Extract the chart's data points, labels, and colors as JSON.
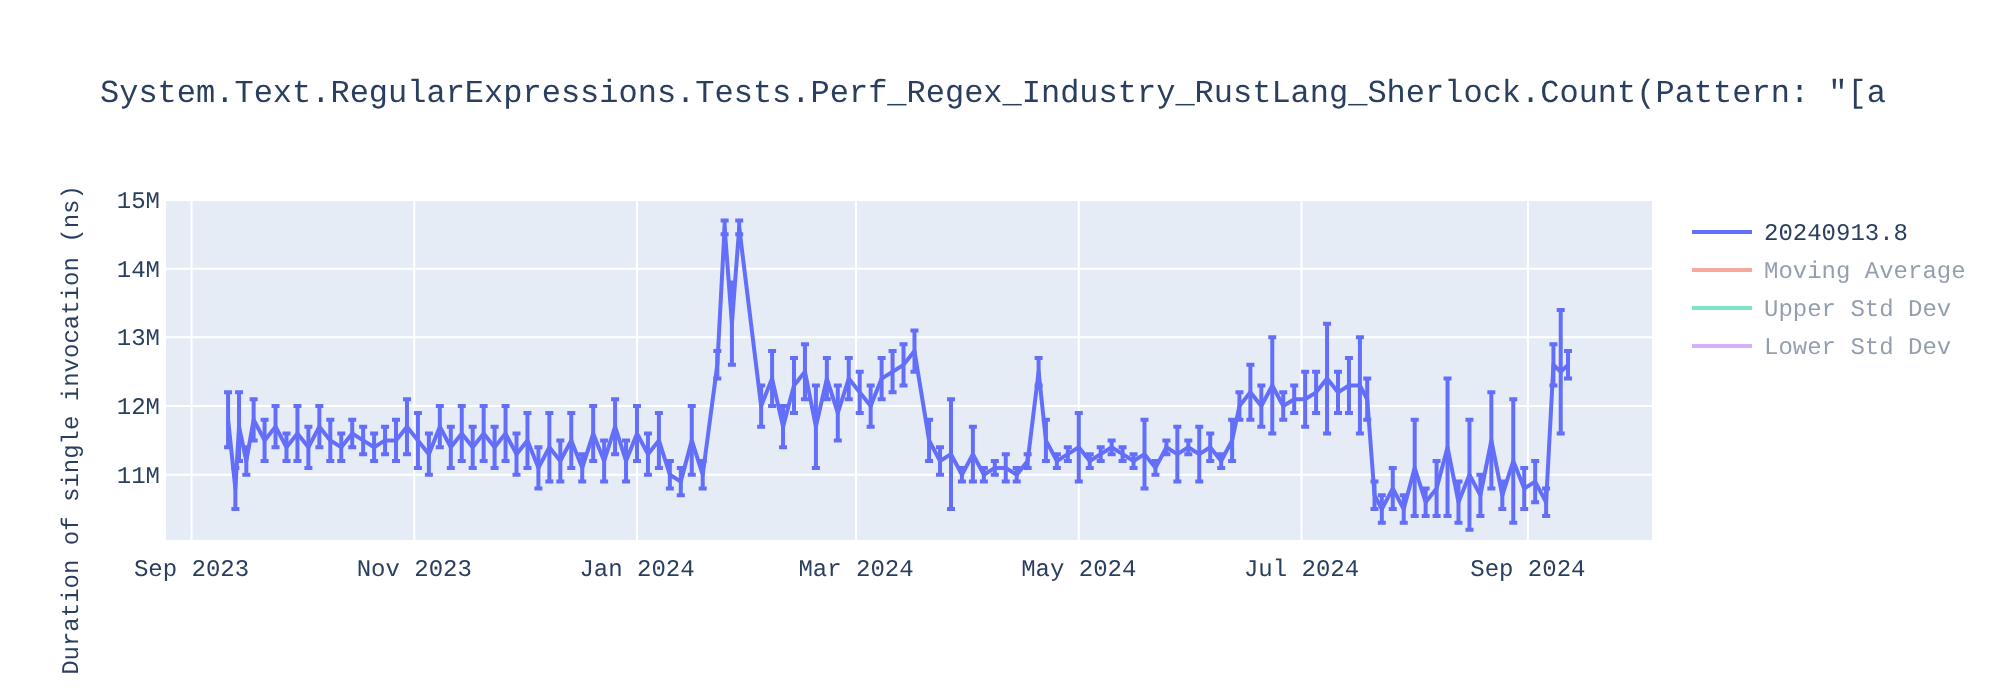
{
  "chart_data": {
    "type": "line",
    "title": "System.Text.RegularExpressions.Tests.Perf_Regex_Industry_RustLang_Sherlock.Count(Pattern: \"[a",
    "ylabel": "Duration of single invocation (ns)",
    "xlim": [
      "2023-08-25",
      "2024-10-05"
    ],
    "xticks": [
      {
        "value": "2023-09-01",
        "label": "Sep 2023"
      },
      {
        "value": "2023-11-01",
        "label": "Nov 2023"
      },
      {
        "value": "2024-01-01",
        "label": "Jan 2024"
      },
      {
        "value": "2024-03-01",
        "label": "Mar 2024"
      },
      {
        "value": "2024-05-01",
        "label": "May 2024"
      },
      {
        "value": "2024-07-01",
        "label": "Jul 2024"
      },
      {
        "value": "2024-09-01",
        "label": "Sep 2024"
      }
    ],
    "ylim": [
      10050000,
      15000000
    ],
    "yticks": [
      {
        "value": 11000000,
        "label": "11M"
      },
      {
        "value": 12000000,
        "label": "12M"
      },
      {
        "value": 13000000,
        "label": "13M"
      },
      {
        "value": 14000000,
        "label": "14M"
      },
      {
        "value": 15000000,
        "label": "15M"
      }
    ],
    "grid": true,
    "legend": "right",
    "series": [
      {
        "name": "20240913.8",
        "color": "#636efa",
        "x": [
          "2023-09-11",
          "2023-09-13",
          "2023-09-14",
          "2023-09-16",
          "2023-09-18",
          "2023-09-21",
          "2023-09-24",
          "2023-09-27",
          "2023-09-30",
          "2023-10-03",
          "2023-10-06",
          "2023-10-09",
          "2023-10-12",
          "2023-10-15",
          "2023-10-18",
          "2023-10-21",
          "2023-10-24",
          "2023-10-27",
          "2023-10-30",
          "2023-11-02",
          "2023-11-05",
          "2023-11-08",
          "2023-11-11",
          "2023-11-14",
          "2023-11-17",
          "2023-11-20",
          "2023-11-23",
          "2023-11-26",
          "2023-11-29",
          "2023-12-02",
          "2023-12-05",
          "2023-12-08",
          "2023-12-11",
          "2023-12-14",
          "2023-12-17",
          "2023-12-20",
          "2023-12-23",
          "2023-12-26",
          "2023-12-29",
          "2024-01-01",
          "2024-01-04",
          "2024-01-07",
          "2024-01-10",
          "2024-01-13",
          "2024-01-16",
          "2024-01-19",
          "2024-01-23",
          "2024-01-25",
          "2024-01-27",
          "2024-01-29",
          "2024-02-04",
          "2024-02-07",
          "2024-02-10",
          "2024-02-13",
          "2024-02-16",
          "2024-02-19",
          "2024-02-22",
          "2024-02-25",
          "2024-02-28",
          "2024-03-02",
          "2024-03-05",
          "2024-03-08",
          "2024-03-11",
          "2024-03-14",
          "2024-03-17",
          "2024-03-21",
          "2024-03-24",
          "2024-03-27",
          "2024-03-30",
          "2024-04-02",
          "2024-04-05",
          "2024-04-08",
          "2024-04-11",
          "2024-04-14",
          "2024-04-17",
          "2024-04-20",
          "2024-04-22",
          "2024-04-25",
          "2024-04-28",
          "2024-05-01",
          "2024-05-04",
          "2024-05-07",
          "2024-05-10",
          "2024-05-13",
          "2024-05-16",
          "2024-05-19",
          "2024-05-22",
          "2024-05-25",
          "2024-05-28",
          "2024-05-31",
          "2024-06-03",
          "2024-06-06",
          "2024-06-09",
          "2024-06-12",
          "2024-06-14",
          "2024-06-17",
          "2024-06-20",
          "2024-06-23",
          "2024-06-26",
          "2024-06-29",
          "2024-07-02",
          "2024-07-05",
          "2024-07-08",
          "2024-07-11",
          "2024-07-14",
          "2024-07-17",
          "2024-07-19",
          "2024-07-21",
          "2024-07-23",
          "2024-07-26",
          "2024-07-29",
          "2024-08-01",
          "2024-08-04",
          "2024-08-07",
          "2024-08-10",
          "2024-08-13",
          "2024-08-16",
          "2024-08-19",
          "2024-08-22",
          "2024-08-25",
          "2024-08-28",
          "2024-08-31",
          "2024-09-03",
          "2024-09-06",
          "2024-09-08",
          "2024-09-10",
          "2024-09-12"
        ],
        "values": [
          11800000,
          10800000,
          11700000,
          11200000,
          11800000,
          11500000,
          11700000,
          11400000,
          11600000,
          11400000,
          11700000,
          11500000,
          11400000,
          11600000,
          11500000,
          11400000,
          11500000,
          11500000,
          11700000,
          11500000,
          11300000,
          11700000,
          11400000,
          11600000,
          11400000,
          11600000,
          11400000,
          11600000,
          11300000,
          11500000,
          11100000,
          11400000,
          11200000,
          11500000,
          11100000,
          11600000,
          11200000,
          11700000,
          11200000,
          11600000,
          11300000,
          11500000,
          11000000,
          10900000,
          11500000,
          11000000,
          12600000,
          14600000,
          13200000,
          14600000,
          12000000,
          12400000,
          11700000,
          12300000,
          12500000,
          11700000,
          12400000,
          11900000,
          12400000,
          12200000,
          12000000,
          12400000,
          12500000,
          12600000,
          12800000,
          11500000,
          11200000,
          11300000,
          11000000,
          11300000,
          11000000,
          11100000,
          11100000,
          11000000,
          11200000,
          12500000,
          11500000,
          11200000,
          11300000,
          11400000,
          11200000,
          11300000,
          11400000,
          11300000,
          11200000,
          11300000,
          11100000,
          11400000,
          11300000,
          11400000,
          11300000,
          11400000,
          11200000,
          11500000,
          12000000,
          12200000,
          12000000,
          12300000,
          12000000,
          12100000,
          12100000,
          12200000,
          12400000,
          12200000,
          12300000,
          12300000,
          12100000,
          10700000,
          10500000,
          10800000,
          10500000,
          11100000,
          10600000,
          10800000,
          11400000,
          10600000,
          11000000,
          10700000,
          11500000,
          10700000,
          11200000,
          10800000,
          10900000,
          10600000,
          12600000,
          12500000,
          12600000
        ],
        "errors": [
          400000,
          300000,
          500000,
          200000,
          300000,
          300000,
          300000,
          200000,
          400000,
          300000,
          300000,
          300000,
          200000,
          200000,
          200000,
          200000,
          200000,
          300000,
          400000,
          400000,
          300000,
          300000,
          300000,
          400000,
          300000,
          400000,
          300000,
          400000,
          300000,
          400000,
          300000,
          500000,
          300000,
          400000,
          200000,
          400000,
          300000,
          400000,
          300000,
          400000,
          300000,
          400000,
          200000,
          200000,
          500000,
          200000,
          200000,
          100000,
          600000,
          100000,
          300000,
          400000,
          300000,
          400000,
          400000,
          600000,
          300000,
          400000,
          300000,
          300000,
          300000,
          300000,
          300000,
          300000,
          300000,
          300000,
          200000,
          800000,
          100000,
          400000,
          100000,
          100000,
          200000,
          100000,
          100000,
          200000,
          300000,
          100000,
          100000,
          500000,
          100000,
          100000,
          100000,
          100000,
          100000,
          500000,
          100000,
          100000,
          400000,
          100000,
          400000,
          200000,
          100000,
          300000,
          200000,
          400000,
          300000,
          700000,
          200000,
          200000,
          400000,
          300000,
          800000,
          300000,
          400000,
          700000,
          300000,
          200000,
          200000,
          300000,
          200000,
          700000,
          200000,
          400000,
          1000000,
          300000,
          800000,
          300000,
          700000,
          200000,
          900000,
          300000,
          300000,
          200000,
          300000,
          900000,
          200000
        ]
      },
      {
        "name": "Moving Average",
        "color": "#ef553b"
      },
      {
        "name": "Upper Std Dev",
        "color": "#00cc96"
      },
      {
        "name": "Lower Std Dev",
        "color": "#ab63fa"
      }
    ]
  }
}
